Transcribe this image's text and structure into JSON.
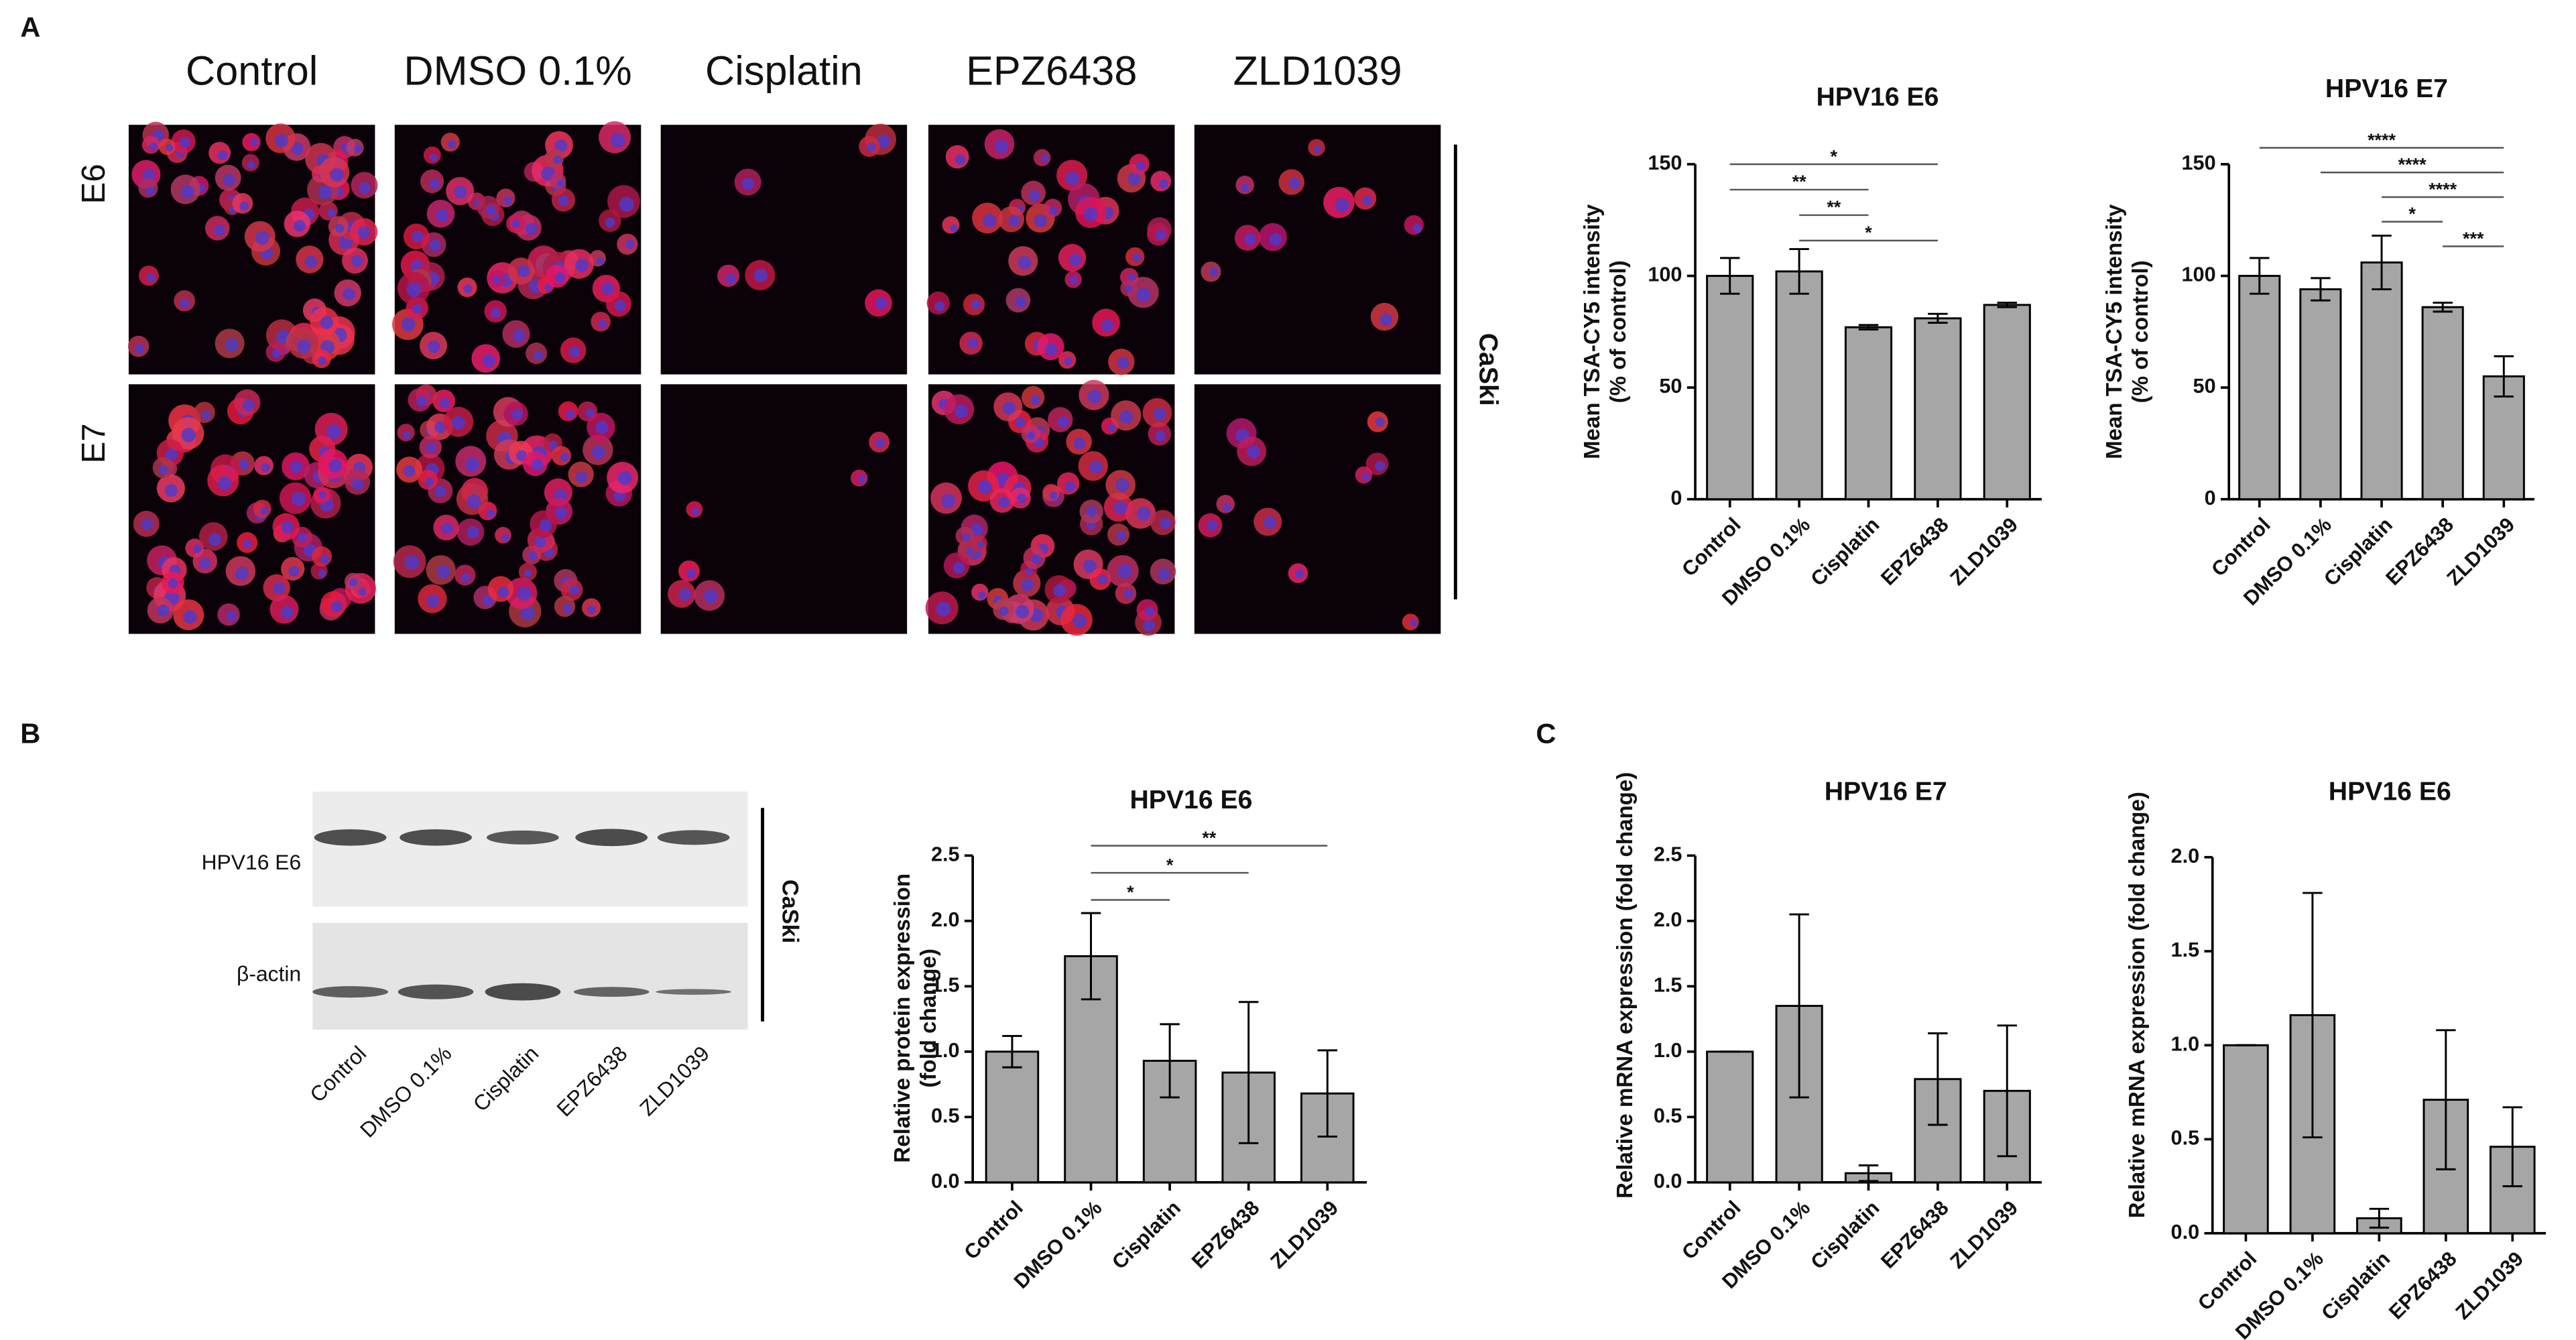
{
  "panel_labels": [
    "A",
    "B",
    "C"
  ],
  "microscopy": {
    "columns": [
      "Control",
      "DMSO 0.1%",
      "Cisplatin",
      "EPZ6438",
      "ZLD1039"
    ],
    "rows": [
      "E6",
      "E7"
    ],
    "cell_line": "CaSki"
  },
  "blot": {
    "bands": [
      "HPV16 E6",
      "β-actin"
    ],
    "lanes": [
      "Control",
      "DMSO 0.1%",
      "Cisplatin",
      "EPZ6438",
      "ZLD1039"
    ],
    "cell_line": "CaSki"
  },
  "chart_data": [
    {
      "type": "bar",
      "title": "HPV16 E6",
      "ylabel": [
        "Mean TSA-CY5 intensity",
        "(% of control)"
      ],
      "color": "#a6a6a6",
      "categories": [
        "Control",
        "DMSO 0.1%",
        "Cisplatin",
        "EPZ6438",
        "ZLD1039"
      ],
      "values": [
        100,
        102,
        77,
        81,
        87
      ],
      "errors": [
        8,
        10,
        1,
        2,
        1
      ],
      "ylim": [
        0,
        150
      ],
      "yticks": [
        0,
        50,
        100,
        150
      ],
      "annotations": [
        {
          "label": "*",
          "between": [
            "Control",
            "EPZ6438"
          ]
        },
        {
          "label": "**",
          "between": [
            "Control",
            "Cisplatin"
          ]
        },
        {
          "label": "**",
          "between": [
            "DMSO 0.1%",
            "Cisplatin"
          ]
        },
        {
          "label": "*",
          "between": [
            "DMSO 0.1%",
            "EPZ6438"
          ]
        }
      ]
    },
    {
      "type": "bar",
      "title": "HPV16 E7",
      "ylabel": [
        "Mean TSA-CY5 intensity",
        "(% of control)"
      ],
      "color": "#a6a6a6",
      "categories": [
        "Control",
        "DMSO 0.1%",
        "Cisplatin",
        "EPZ6438",
        "ZLD1039"
      ],
      "values": [
        100,
        94,
        106,
        86,
        55
      ],
      "errors": [
        8,
        5,
        12,
        2,
        9
      ],
      "ylim": [
        0,
        150
      ],
      "yticks": [
        0,
        50,
        100,
        150
      ],
      "annotations": [
        {
          "label": "****",
          "between": [
            "Control",
            "ZLD1039"
          ]
        },
        {
          "label": "****",
          "between": [
            "DMSO 0.1%",
            "ZLD1039"
          ]
        },
        {
          "label": "****",
          "between": [
            "Cisplatin",
            "ZLD1039"
          ]
        },
        {
          "label": "*",
          "between": [
            "Cisplatin",
            "EPZ6438"
          ]
        },
        {
          "label": "***",
          "between": [
            "EPZ6438",
            "ZLD1039"
          ]
        }
      ]
    },
    {
      "type": "bar",
      "title": "HPV16 E6",
      "ylabel": [
        "Relative protein expression",
        "(fold change)"
      ],
      "color": "#a6a6a6",
      "categories": [
        "Control",
        "DMSO 0.1%",
        "Cisplatin",
        "EPZ6438",
        "ZLD1039"
      ],
      "values": [
        1.0,
        1.73,
        0.93,
        0.84,
        0.68
      ],
      "errors": [
        0.12,
        0.33,
        0.28,
        0.54,
        0.33
      ],
      "ylim": [
        0,
        2.5
      ],
      "yticks": [
        {
          "value": 0,
          "label": "0.0"
        },
        0.5,
        {
          "value": 1,
          "label": "1.0"
        },
        1.5,
        {
          "value": 2,
          "label": "2.0"
        },
        2.5
      ],
      "annotations": [
        {
          "label": "**",
          "between": [
            "DMSO 0.1%",
            "ZLD1039"
          ]
        },
        {
          "label": "*",
          "between": [
            "DMSO 0.1%",
            "EPZ6438"
          ]
        },
        {
          "label": "*",
          "between": [
            "DMSO 0.1%",
            "Cisplatin"
          ]
        }
      ]
    },
    {
      "type": "bar",
      "title": "HPV16 E7",
      "ylabel": [
        "Relative mRNA expression (fold change)"
      ],
      "color": "#a6a6a6",
      "categories": [
        "Control",
        "DMSO 0.1%",
        "Cisplatin",
        "EPZ6438",
        "ZLD1039"
      ],
      "values": [
        1.0,
        1.35,
        0.07,
        0.79,
        0.7
      ],
      "errors": [
        0.0,
        0.7,
        0.06,
        0.35,
        0.5
      ],
      "ylim": [
        0,
        2.5
      ],
      "yticks": [
        {
          "value": 0,
          "label": "0.0"
        },
        0.5,
        {
          "value": 1,
          "label": "1.0"
        },
        1.5,
        {
          "value": 2,
          "label": "2.0"
        },
        2.5
      ]
    },
    {
      "type": "bar",
      "title": "HPV16 E6",
      "ylabel": [
        "Relative mRNA expression (fold change)"
      ],
      "color": "#a6a6a6",
      "categories": [
        "Control",
        "DMSO 0.1%",
        "Cisplatin",
        "EPZ6438",
        "ZLD1039"
      ],
      "values": [
        1.0,
        1.16,
        0.08,
        0.71,
        0.46
      ],
      "errors": [
        0.0,
        0.65,
        0.05,
        0.37,
        0.21
      ],
      "ylim": [
        0,
        2
      ],
      "yticks": [
        {
          "value": 0,
          "label": "0.0"
        },
        0.5,
        {
          "value": 1,
          "label": "1.0"
        },
        1.5,
        {
          "value": 2,
          "label": "2.0"
        }
      ]
    }
  ]
}
